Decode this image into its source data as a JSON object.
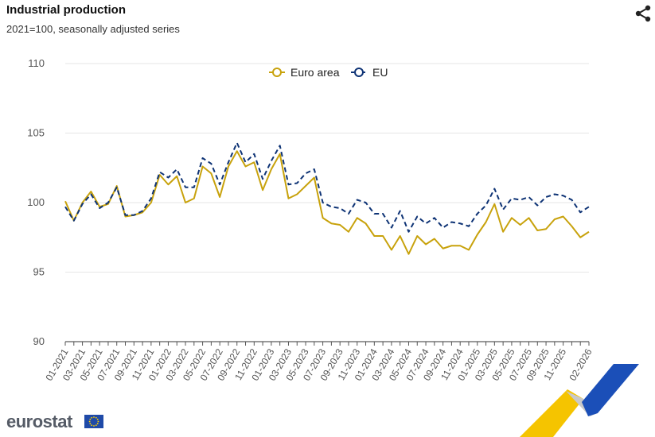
{
  "header": {
    "title": "Industrial production",
    "subtitle": "2021=100, seasonally adjusted series",
    "share_icon": "share-icon"
  },
  "footer": {
    "brand": "eurostat",
    "flag_icon": "eu-flag-icon"
  },
  "chart_data": {
    "type": "line",
    "ylim": [
      90,
      110
    ],
    "yticks": [
      90,
      95,
      100,
      105,
      110
    ],
    "grid": true,
    "legend_position": "top-center",
    "x": [
      "01-2021",
      "02-2021",
      "03-2021",
      "04-2021",
      "05-2021",
      "06-2021",
      "07-2021",
      "08-2021",
      "09-2021",
      "10-2021",
      "11-2021",
      "12-2021",
      "01-2022",
      "02-2022",
      "03-2022",
      "04-2022",
      "05-2022",
      "06-2022",
      "07-2022",
      "08-2022",
      "09-2022",
      "10-2022",
      "11-2022",
      "12-2022",
      "01-2023",
      "02-2023",
      "03-2023",
      "04-2023",
      "05-2023",
      "06-2023",
      "07-2023",
      "08-2023",
      "09-2023",
      "10-2023",
      "11-2023",
      "12-2023",
      "01-2024",
      "02-2024",
      "03-2024",
      "04-2024",
      "05-2024",
      "06-2024",
      "07-2024",
      "08-2024",
      "09-2024",
      "10-2024",
      "11-2024",
      "12-2024",
      "01-2025",
      "02-2025",
      "03-2025",
      "04-2025",
      "05-2025",
      "06-2025",
      "07-2025",
      "08-2025",
      "09-2025",
      "10-2025",
      "11-2025",
      "12-2025",
      "01-2026",
      "02-2026"
    ],
    "xtick_labels": [
      "01-2021",
      "03-2021",
      "05-2021",
      "07-2021",
      "09-2021",
      "11-2021",
      "01-2022",
      "03-2022",
      "05-2022",
      "07-2022",
      "09-2022",
      "11-2022",
      "01-2023",
      "03-2023",
      "05-2023",
      "07-2023",
      "09-2023",
      "11-2023",
      "01-2024",
      "03-2024",
      "05-2024",
      "07-2024",
      "09-2024",
      "11-2024",
      "01-2025",
      "03-2025",
      "05-2025",
      "07-2025",
      "09-2025",
      "11-2025",
      "02-2026"
    ],
    "series": [
      {
        "name": "Euro area",
        "color": "#c8a20c",
        "dash": "solid",
        "values": [
          100.1,
          98.7,
          100.0,
          100.8,
          99.7,
          99.9,
          101.2,
          99.0,
          99.1,
          99.3,
          100.0,
          102.0,
          101.3,
          101.9,
          100.0,
          100.3,
          102.6,
          102.1,
          100.4,
          102.6,
          103.7,
          102.6,
          102.9,
          100.9,
          102.4,
          103.5,
          100.3,
          100.6,
          101.2,
          101.8,
          98.9,
          98.5,
          98.4,
          97.9,
          98.9,
          98.5,
          97.6,
          97.6,
          96.6,
          97.6,
          96.3,
          97.6,
          97.0,
          97.4,
          96.7,
          96.9,
          96.9,
          96.6,
          97.7,
          98.6,
          99.9,
          97.9,
          98.9,
          98.4,
          98.9,
          98.0,
          98.1,
          98.8,
          99.0,
          98.3,
          97.5,
          97.9
        ]
      },
      {
        "name": "EU",
        "color": "#0e3375",
        "dash": "dashed",
        "values": [
          99.7,
          98.7,
          99.9,
          100.6,
          99.6,
          100.0,
          101.1,
          99.1,
          99.1,
          99.4,
          100.3,
          102.2,
          101.8,
          102.4,
          101.1,
          101.1,
          103.2,
          102.8,
          101.3,
          102.9,
          104.3,
          102.9,
          103.5,
          101.7,
          103.0,
          104.1,
          101.3,
          101.4,
          102.1,
          102.4,
          100.0,
          99.7,
          99.6,
          99.2,
          100.2,
          100.0,
          99.2,
          99.2,
          98.2,
          99.4,
          97.9,
          99.0,
          98.5,
          98.9,
          98.2,
          98.6,
          98.5,
          98.3,
          99.2,
          99.8,
          101.0,
          99.5,
          100.3,
          100.2,
          100.4,
          99.8,
          100.4,
          100.6,
          100.5,
          100.2,
          99.3,
          99.7
        ]
      }
    ]
  }
}
